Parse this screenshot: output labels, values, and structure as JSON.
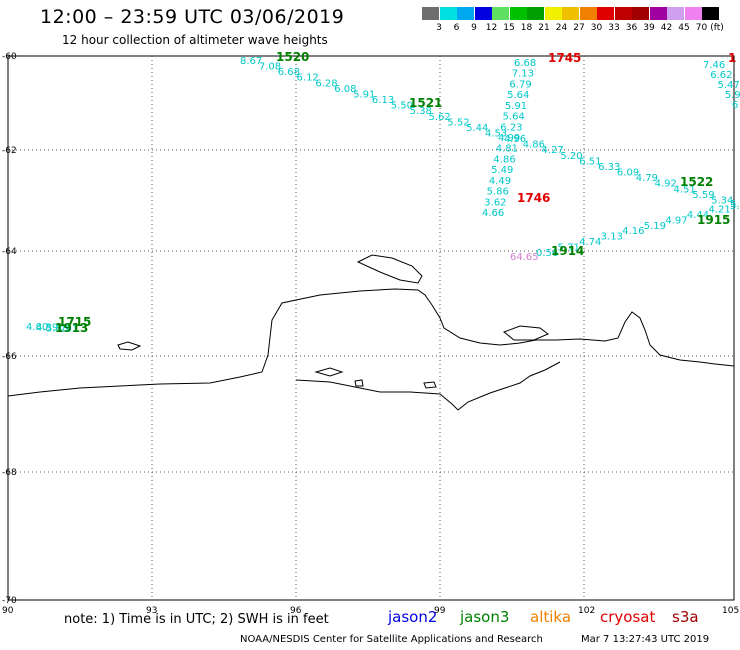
{
  "title": "12:00 – 23:59 UTC 03/06/2019",
  "subtitle": "12 hour collection of altimeter wave heights",
  "colorbar": {
    "colors": [
      "#6e6e6e",
      "#00e0e0",
      "#00a8f0",
      "#0000e0",
      "#60e060",
      "#00c000",
      "#00a000",
      "#f0f000",
      "#f0c000",
      "#f08000",
      "#e00000",
      "#c00000",
      "#a00000",
      "#a000a0",
      "#d0a0f0",
      "#f080f0",
      "#000000"
    ],
    "labels": [
      "3",
      "6",
      "9",
      "12",
      "15",
      "18",
      "21",
      "24",
      "27",
      "30",
      "33",
      "36",
      "39",
      "42",
      "45",
      "70"
    ],
    "unit": "(ft)"
  },
  "axes": {
    "lat_labels": [
      "-60",
      "-62",
      "-64",
      "-66",
      "-68",
      "-70"
    ],
    "lon_labels": [
      "90",
      "93",
      "96",
      "99",
      "102",
      "105"
    ]
  },
  "tracks": [
    {
      "color": "#00c8c8",
      "values": [
        "8.67",
        "7.08",
        "6.68",
        "6.12",
        "6.28",
        "6.08",
        "5.91",
        "6.13",
        "5.50",
        "5.38",
        "5.62",
        "5.52",
        "5.44",
        "4.53",
        "4.96",
        "4.86",
        "4.27",
        "5.20",
        "6.51",
        "6.33",
        "6.09",
        "4.79",
        "4.92",
        "4.51",
        "5.59",
        "5.34",
        "5.16"
      ]
    },
    {
      "color": "#00c8c8",
      "values": [
        "6.68",
        "7.13",
        "6.79",
        "5.64",
        "5.91",
        "5.64",
        "6.23",
        "4.99",
        "4.81",
        "4.86",
        "5.49",
        "4.49",
        "5.86",
        "3.62",
        "4.66"
      ]
    },
    {
      "color": "#00c8c8",
      "values": [
        "0.56",
        "5.71",
        "4.74",
        "3.13",
        "4.16",
        "5.19",
        "4.97",
        "4.44",
        "4.21",
        "5.62"
      ]
    },
    {
      "color": "#00c8c8",
      "values": [
        "7.46",
        "6.62",
        "5.47",
        "5.9",
        "6"
      ]
    },
    {
      "color": "#00c8c8",
      "values": [
        "4.80",
        "4.39",
        "5.68",
        "3.91"
      ]
    },
    {
      "color": "#d080d0",
      "values": [
        "64.65"
      ]
    }
  ],
  "time_labels": [
    {
      "text": "1520",
      "color": "#008000"
    },
    {
      "text": "1521",
      "color": "#008000"
    },
    {
      "text": "1745",
      "color": "#e00000"
    },
    {
      "text": "1746",
      "color": "#e00000"
    },
    {
      "text": "1522",
      "color": "#008000"
    },
    {
      "text": "1915",
      "color": "#008000"
    },
    {
      "text": "1914",
      "color": "#008000"
    },
    {
      "text": "1715",
      "color": "#008000"
    },
    {
      "text": "1913",
      "color": "#008000"
    },
    {
      "text": "1",
      "color": "#e00000"
    }
  ],
  "note": "note: 1) Time is in UTC; 2) SWH is in feet",
  "satellites": [
    {
      "name": "jason2",
      "color": "#0000e0"
    },
    {
      "name": "jason3",
      "color": "#008000"
    },
    {
      "name": "altika",
      "color": "#f08000"
    },
    {
      "name": "cryosat",
      "color": "#e00000"
    },
    {
      "name": "s3a",
      "color": "#a00000"
    }
  ],
  "credit": "NOAA/NESDIS Center for Satellite Applications and Research",
  "timestamp": "Mar  7 13:27:43 UTC 2019"
}
